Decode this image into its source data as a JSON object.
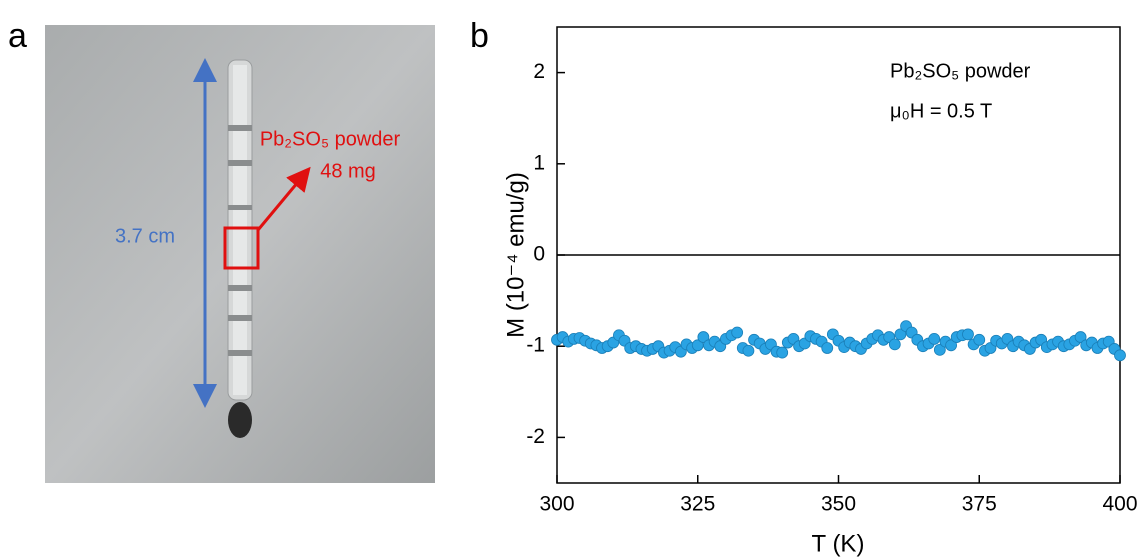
{
  "photo": {
    "label": "a",
    "scale_label": "3.7 cm",
    "annotation": [
      "Pb₂SO₅ powder",
      "48 mg"
    ]
  },
  "chart_data": {
    "type": "scatter",
    "panel_label": "b",
    "x_label": "T (K)",
    "y_label": "M (10⁻⁴ emu/g)",
    "annotations": [
      "Pb₂SO₅ powder",
      "μ₀H = 0.5 T"
    ],
    "xlim": [
      300,
      400
    ],
    "xticks": [
      300,
      325,
      350,
      375,
      400
    ],
    "ylim": [
      -2.5,
      2.5
    ],
    "yticks": [
      -2,
      -1,
      0,
      1,
      2
    ],
    "reference_line": 0,
    "series": [
      {
        "color": "#2aa3e3",
        "x": [
          300,
          301,
          302,
          303,
          304,
          305,
          306,
          307,
          308,
          309,
          310,
          311,
          312,
          313,
          314,
          315,
          316,
          317,
          318,
          319,
          320,
          321,
          322,
          323,
          324,
          325,
          326,
          327,
          328,
          329,
          330,
          331,
          332,
          333,
          334,
          335,
          336,
          337,
          338,
          339,
          340,
          341,
          342,
          343,
          344,
          345,
          346,
          347,
          348,
          349,
          350,
          351,
          352,
          353,
          354,
          355,
          356,
          357,
          358,
          359,
          360,
          361,
          362,
          363,
          364,
          365,
          366,
          367,
          368,
          369,
          370,
          371,
          372,
          373,
          374,
          375,
          376,
          377,
          378,
          379,
          380,
          381,
          382,
          383,
          384,
          385,
          386,
          387,
          388,
          389,
          390,
          391,
          392,
          393,
          394,
          395,
          396,
          397,
          398,
          399,
          400
        ],
        "values": [
          -0.93,
          -0.9,
          -0.95,
          -0.92,
          -0.91,
          -0.94,
          -0.97,
          -0.99,
          -1.02,
          -1.0,
          -0.96,
          -0.88,
          -0.94,
          -1.02,
          -1.0,
          -1.03,
          -1.05,
          -1.03,
          -1.0,
          -1.07,
          -1.05,
          -1.01,
          -1.06,
          -0.98,
          -1.02,
          -0.99,
          -0.9,
          -0.99,
          -0.95,
          -1.0,
          -0.92,
          -0.88,
          -0.85,
          -1.02,
          -1.05,
          -0.93,
          -0.97,
          -1.03,
          -0.98,
          -1.06,
          -1.07,
          -0.96,
          -0.92,
          -1.0,
          -0.97,
          -0.89,
          -0.92,
          -0.95,
          -1.02,
          -0.87,
          -0.94,
          -1.01,
          -0.96,
          -1.0,
          -1.03,
          -0.97,
          -0.92,
          -0.88,
          -0.93,
          -0.9,
          -0.98,
          -0.87,
          -0.78,
          -0.85,
          -0.93,
          -1.0,
          -0.97,
          -0.92,
          -1.04,
          -0.95,
          -0.99,
          -0.9,
          -0.88,
          -0.87,
          -0.98,
          -0.93,
          -1.05,
          -1.02,
          -0.94,
          -0.97,
          -0.92,
          -1.0,
          -0.95,
          -0.99,
          -1.03,
          -0.96,
          -0.93,
          -1.01,
          -0.98,
          -0.95,
          -1.0,
          -0.98,
          -0.94,
          -0.9,
          -0.99,
          -0.96,
          -1.02,
          -0.97,
          -0.95,
          -1.03,
          -1.1
        ]
      }
    ]
  }
}
